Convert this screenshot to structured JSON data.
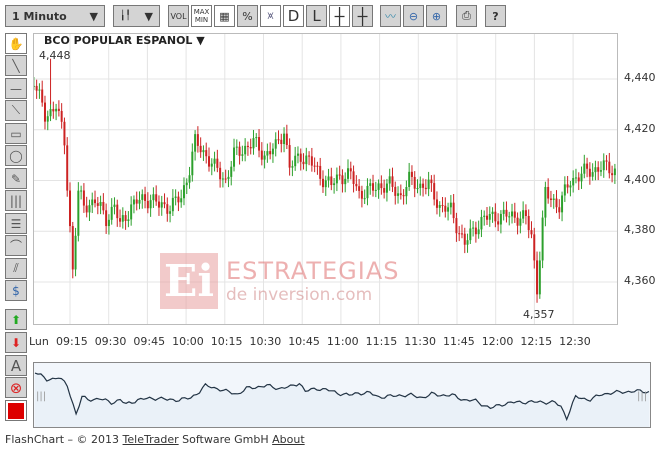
{
  "toolbar": {
    "interval": "1 Minuto",
    "buttons": [
      "VOL",
      "MAX MIN",
      "grid",
      "%",
      "area",
      "D",
      "L",
      "crosshair",
      "crosshair-L",
      "add-indicator",
      "zoom-out",
      "zoom-in",
      "print",
      "?"
    ]
  },
  "title": "BCO POPULAR ESPANOL ▼",
  "high_label": "4,448",
  "low_label": "4,357",
  "watermark": {
    "logo": "Ei",
    "line1": "ESTRATEGIAS",
    "line2": "de inversion.com"
  },
  "footer": {
    "prefix": "FlashChart – © 2013 ",
    "link1": "TeleTrader",
    "middle": " Software GmbH ",
    "link2": "About"
  },
  "colors": {
    "up": "#2ca02c",
    "down": "#cc2222",
    "nav_line": "#223344",
    "color_swatch": "#dd0000"
  },
  "chart_data": {
    "type": "candlestick",
    "title": "BCO POPULAR ESPANOL",
    "xlabel": "",
    "ylabel": "",
    "ylim": [
      4350,
      4450
    ],
    "y_ticks": [
      "4,360",
      "4,380",
      "4,400",
      "4,420",
      "4,440"
    ],
    "x_ticks": [
      "Lun",
      "09:15",
      "09:30",
      "09:45",
      "10:00",
      "10:15",
      "10:30",
      "10:45",
      "11:00",
      "11:15",
      "11:30",
      "11:45",
      "12:00",
      "12:15",
      "12:30"
    ],
    "grid": true,
    "x": [
      "09:02",
      "09:06",
      "09:10",
      "09:13",
      "09:16",
      "09:18",
      "09:20",
      "09:24",
      "09:28",
      "09:31",
      "09:33",
      "09:37",
      "09:40",
      "09:44",
      "09:47",
      "09:51",
      "09:55",
      "09:58",
      "10:00",
      "10:04",
      "10:07",
      "10:11",
      "10:14",
      "10:18",
      "10:21",
      "10:25",
      "10:29",
      "10:32",
      "10:34",
      "10:38",
      "10:41",
      "10:45",
      "10:49",
      "10:52",
      "10:56",
      "10:59",
      "11:03",
      "11:06",
      "11:10",
      "11:14",
      "11:17",
      "11:21",
      "11:24",
      "11:28",
      "11:32",
      "11:35",
      "11:37",
      "11:41",
      "11:44",
      "11:48",
      "11:51",
      "11:55",
      "11:59",
      "12:01",
      "12:03",
      "12:06",
      "12:09",
      "12:11",
      "12:15",
      "12:18",
      "12:22",
      "12:26",
      "12:29",
      "12:31"
    ],
    "close": [
      4440,
      4425,
      4430,
      4415,
      4365,
      4395,
      4390,
      4392,
      4385,
      4390,
      4382,
      4390,
      4392,
      4393,
      4390,
      4390,
      4393,
      4405,
      4415,
      4410,
      4405,
      4400,
      4410,
      4413,
      4415,
      4410,
      4413,
      4420,
      4405,
      4410,
      4408,
      4402,
      4398,
      4402,
      4402,
      4395,
      4396,
      4398,
      4398,
      4394,
      4400,
      4398,
      4398,
      4390,
      4388,
      4380,
      4375,
      4382,
      4385,
      4386,
      4386,
      4386,
      4385,
      4378,
      4358,
      4395,
      4392,
      4390,
      4400,
      4402,
      4404,
      4405,
      4405,
      4404
    ],
    "high": 4448,
    "low": 4357
  }
}
